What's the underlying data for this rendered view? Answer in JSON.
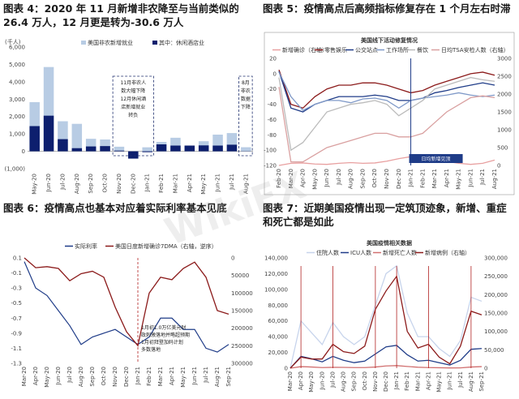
{
  "watermark": "WikiFX",
  "panels": {
    "p1": {
      "title_prefix": "图表 4：",
      "title": "2020 年 11 月新增非农降至与当前类似的 26.4 万人，12 月更是转为-30.6 万人",
      "unit": "(千人)",
      "legend": [
        "美国非农新增就业",
        "其中：休闲酒店业"
      ],
      "annotation1": [
        "11月非农人",
        "数大幅下降",
        "12月休闲酒",
        "店新增就业",
        "转负"
      ],
      "annotation2": [
        "8月",
        "非农",
        "数据",
        "下降"
      ]
    },
    "p2": {
      "title_prefix": "图表 5：",
      "title": "疫情高点后高频指标修复存在 1 个月左右时滞",
      "inner_title": "美国线下活动修复情况",
      "legend": [
        "新增确诊（右轴）",
        "零售娱乐",
        "公交站点",
        "工作场所",
        "餐饮",
        "日均TSA安检人数（右轴）"
      ],
      "marker": "日均新增见顶"
    },
    "p3": {
      "title_prefix": "图表 6：",
      "title": "疫情高点也基本对应着实际利率基本见底",
      "legend": [
        "实际利率",
        "美国日度新增确诊7DMA（右轴，逆序）"
      ],
      "annotation": [
        "1月初1.0万亿美元财",
        "政刺激落地并略超预期",
        "1月初拜登加码计划",
        "多数落地"
      ]
    },
    "p4": {
      "title_prefix": "图表 7：",
      "title": "近期美国疫情出现一定筑顶迹象，新增、重症和死亡都是如此",
      "inner_title": "美国疫情相关数据",
      "legend": [
        "住院人数",
        "ICU人数",
        "新增死亡人数",
        "新增病例（右轴）"
      ]
    }
  },
  "chart_data": [
    {
      "type": "bar",
      "panel": "p1",
      "categories": [
        "May-20",
        "Jun-20",
        "Jul-20",
        "Aug-20",
        "Sep-20",
        "Oct-20",
        "Nov-20",
        "Dec-20",
        "Jan-21",
        "Feb-21",
        "Mar-21",
        "Apr-21",
        "May-21",
        "Jun-21",
        "Jul-21",
        "Aug-21"
      ],
      "series": [
        {
          "name": "美国非农新增就业",
          "values": [
            2830,
            4850,
            1730,
            1580,
            720,
            680,
            264,
            -306,
            230,
            540,
            780,
            270,
            580,
            960,
            1050,
            235
          ]
        },
        {
          "name": "其中：休闲酒店业",
          "values": [
            1450,
            2050,
            700,
            180,
            280,
            300,
            40,
            -420,
            -50,
            400,
            330,
            330,
            340,
            330,
            380,
            10
          ]
        }
      ],
      "ylim": [
        -1000,
        6000
      ],
      "yticks": [
        "(1,000)",
        "0",
        "1,000",
        "2,000",
        "3,000",
        "4,000",
        "5,000",
        "6,000"
      ],
      "colors": {
        "total": "#b8cce4",
        "leisure": "#0d1f6e"
      }
    },
    {
      "type": "line",
      "panel": "p2",
      "xticks": [
        "Feb-20",
        "Mar-20",
        "Apr-20",
        "May-20",
        "Jun-20",
        "Jul-20",
        "Aug-20",
        "Sep-20",
        "Oct-20",
        "Nov-20",
        "Dec-20",
        "Jan-21",
        "Feb-21",
        "Mar-21",
        "Apr-21",
        "May-21",
        "Jun-21",
        "Jul-21",
        "Aug-21"
      ],
      "ylim_left": [
        -120,
        20
      ],
      "yticks_left": [
        "20",
        "0",
        "-20",
        "-40",
        "-60",
        "-80",
        "-100",
        "-120"
      ],
      "ylim_right": [
        0,
        3000
      ],
      "yticks_right": [
        "3000",
        "2500",
        "2000",
        "1500",
        "1000",
        "500",
        "0"
      ],
      "series": [
        {
          "name": "新增确诊（右轴）",
          "color": "#e8a0a0",
          "values": [
            0,
            60,
            70,
            40,
            30,
            60,
            80,
            60,
            70,
            120,
            190,
            245,
            170,
            100,
            110,
            60,
            30,
            60,
            150
          ]
        },
        {
          "name": "零售娱乐",
          "color": "#8b1a1a",
          "values": [
            5,
            -40,
            -45,
            -30,
            -20,
            -15,
            -15,
            -12,
            -12,
            -15,
            -20,
            -25,
            -22,
            -15,
            -10,
            -5,
            0,
            2,
            -2
          ]
        },
        {
          "name": "公交站点",
          "color": "#1f3c88",
          "values": [
            3,
            -45,
            -50,
            -40,
            -35,
            -30,
            -30,
            -30,
            -28,
            -30,
            -35,
            -35,
            -32,
            -25,
            -22,
            -18,
            -15,
            -12,
            -15
          ]
        },
        {
          "name": "工作场所",
          "color": "#7f99c8",
          "values": [
            2,
            -30,
            -48,
            -40,
            -35,
            -35,
            -38,
            -33,
            -32,
            -35,
            -45,
            -35,
            -32,
            -30,
            -28,
            -25,
            -28,
            -30,
            -28
          ]
        },
        {
          "name": "餐饮",
          "color": "#bbbbbb",
          "values": [
            -5,
            -100,
            -90,
            -70,
            -50,
            -45,
            -40,
            -38,
            -35,
            -40,
            -55,
            -45,
            -35,
            -20,
            -15,
            -10,
            -5,
            -8,
            -10
          ]
        },
        {
          "name": "日均TSA安检人数（右轴）",
          "color": "#d9a0a0",
          "values": [
            2200,
            100,
            100,
            300,
            500,
            600,
            700,
            800,
            900,
            900,
            800,
            800,
            900,
            1200,
            1500,
            1700,
            1900,
            1950,
            1900
          ]
        }
      ]
    },
    {
      "type": "line",
      "panel": "p3",
      "xticks": [
        "Mar-20",
        "Apr-20",
        "May-20",
        "Jun-20",
        "Jul-20",
        "Aug-20",
        "Sep-20",
        "Oct-20",
        "Nov-20",
        "Dec-20",
        "Jan-21",
        "Feb-21",
        "Mar-21",
        "Apr-21",
        "May-21",
        "Jun-21",
        "Jul-21",
        "Aug-21",
        "Sep-21"
      ],
      "ylim_left": [
        -1.3,
        0.1
      ],
      "yticks_left": [
        "0.1",
        "-0.1",
        "-0.3",
        "-0.5",
        "-0.7",
        "-0.9",
        "-1.1",
        "-1.3"
      ],
      "ylim_right_inverted": [
        0,
        300000
      ],
      "yticks_right": [
        "0",
        "50000",
        "100000",
        "150000",
        "200000",
        "250000",
        "300000"
      ],
      "series": [
        {
          "name": "实际利率",
          "color": "#1f3c88",
          "values": [
            0.05,
            -0.3,
            -0.4,
            -0.6,
            -0.8,
            -1.05,
            -0.95,
            -0.9,
            -0.85,
            -0.95,
            -1.05,
            -0.95,
            -0.7,
            -0.7,
            -0.85,
            -0.85,
            -1.1,
            -1.15,
            -1.05
          ]
        },
        {
          "name": "美国日度新增确诊7DMA（右轴，逆序）",
          "color": "#8b1a1a",
          "values": [
            0,
            28000,
            25000,
            30000,
            65000,
            45000,
            38000,
            55000,
            140000,
            210000,
            250000,
            100000,
            55000,
            62000,
            30000,
            12000,
            55000,
            150000,
            160000
          ]
        }
      ]
    },
    {
      "type": "line",
      "panel": "p4",
      "xticks": [
        "Mar-20",
        "Apr-20",
        "May-20",
        "Jun-20",
        "Jul-20",
        "Aug-20",
        "Sep-20",
        "Oct-20",
        "Nov-20",
        "Dec-20",
        "Jan-21",
        "Feb-21",
        "Mar-21",
        "Apr-21",
        "May-21",
        "Jun-21",
        "Jul-21",
        "Aug-21",
        "Sep-21"
      ],
      "ylim_left": [
        0,
        140000
      ],
      "yticks_left": [
        "0",
        "20,000",
        "40,000",
        "60,000",
        "80,000",
        "100,000",
        "120,000",
        "140,000"
      ],
      "ylim_right": [
        0,
        300000
      ],
      "yticks_right": [
        "0",
        "50,000",
        "100,000",
        "150,000",
        "200,000",
        "250,000",
        "300,000"
      ],
      "series": [
        {
          "name": "住院人数",
          "color": "#c7d4ec",
          "values": [
            0,
            60000,
            45000,
            30000,
            58000,
            40000,
            30000,
            40000,
            80000,
            120000,
            130000,
            70000,
            40000,
            40000,
            25000,
            15000,
            35000,
            90000,
            85000
          ]
        },
        {
          "name": "ICU人数",
          "color": "#1f3c88",
          "values": [
            0,
            15000,
            12000,
            8000,
            15000,
            10000,
            7000,
            9000,
            18000,
            27000,
            29000,
            17000,
            9000,
            10000,
            7000,
            4000,
            10000,
            24000,
            25000
          ]
        },
        {
          "name": "新增死亡人数",
          "color": "#d17070",
          "values": [
            0,
            2000,
            1500,
            800,
            1100,
            1000,
            800,
            800,
            1500,
            2800,
            3300,
            2200,
            1200,
            800,
            600,
            300,
            400,
            1500,
            2000
          ]
        },
        {
          "name": "新增病例（右轴）",
          "color": "#8b1a1a",
          "values": [
            0,
            30000,
            25000,
            25000,
            65000,
            45000,
            40000,
            60000,
            160000,
            210000,
            250000,
            100000,
            55000,
            65000,
            30000,
            12000,
            60000,
            155000,
            145000
          ]
        }
      ]
    }
  ]
}
